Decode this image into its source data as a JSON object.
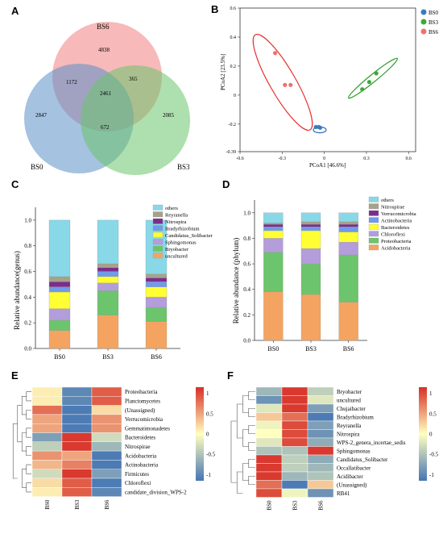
{
  "panel_labels": [
    "A",
    "B",
    "C",
    "D",
    "E",
    "F"
  ],
  "chart_data": [
    {
      "panel": "A",
      "type": "venn",
      "sets": [
        "BS6",
        "BS0",
        "BS3"
      ],
      "colors": {
        "BS6": "#f08080",
        "BS0": "#5b8fc8",
        "BS3": "#6cc46c"
      },
      "regions": {
        "BS6_only": "4838",
        "BS0_only": "2847",
        "BS3_only": "2085",
        "BS6_BS0": "1172",
        "BS6_BS3": "365",
        "BS0_BS3": "672",
        "all": "2461"
      }
    },
    {
      "panel": "B",
      "type": "scatter",
      "xlabel": "PCoA1 [46.6%]",
      "ylabel": "PCoA2 [23.5%]",
      "xticks": [
        "-0.6",
        "-0.3",
        "0",
        "0.3",
        "0.6"
      ],
      "yticks": [
        "-0.39",
        "-0.2",
        "0",
        "0.2",
        "0.4",
        "0.6"
      ],
      "xlim": [
        -0.6,
        0.65
      ],
      "ylim": [
        -0.39,
        0.6
      ],
      "legend_position": "top-right",
      "series": [
        {
          "name": "BS0",
          "color": "#3a7bbf",
          "points": [
            [
              -0.06,
              -0.22
            ],
            [
              -0.04,
              -0.22
            ],
            [
              -0.03,
              -0.225
            ]
          ]
        },
        {
          "name": "BS3",
          "color": "#3aab3a",
          "points": [
            [
              0.27,
              0.04
            ],
            [
              0.32,
              0.09
            ],
            [
              0.37,
              0.15
            ]
          ]
        },
        {
          "name": "BS6",
          "color": "#f07070",
          "points": [
            [
              -0.35,
              0.29
            ],
            [
              -0.28,
              0.07
            ],
            [
              -0.24,
              0.07
            ]
          ]
        }
      ]
    },
    {
      "panel": "C",
      "type": "stacked-bar",
      "ylabel": "Relative abundance(genus)",
      "categories": [
        "BS0",
        "BS3",
        "BS6"
      ],
      "yticks": [
        "0.0",
        "0.2",
        "0.4",
        "0.6",
        "0.8",
        "1.0"
      ],
      "ylim": [
        0,
        1.1
      ],
      "legend": [
        "others",
        "Reyranella",
        "Nitrospira",
        "Bradyrhizobium",
        "Candidatus_Solibacter",
        "Sphingomonas",
        "Bryobacter",
        "uncultured"
      ],
      "series": [
        {
          "name": "uncultured",
          "color": "#f4a460",
          "values": [
            0.14,
            0.26,
            0.21
          ]
        },
        {
          "name": "Bryobacter",
          "color": "#6cc46c",
          "values": [
            0.08,
            0.19,
            0.11
          ]
        },
        {
          "name": "Sphingomonas",
          "color": "#b39ddb",
          "values": [
            0.09,
            0.06,
            0.08
          ]
        },
        {
          "name": "Candidatus_Solibacter",
          "color": "#ffff33",
          "values": [
            0.13,
            0.05,
            0.08
          ]
        },
        {
          "name": "Bradyrhizobium",
          "color": "#6f9be8",
          "values": [
            0.04,
            0.04,
            0.04
          ]
        },
        {
          "name": "Nitrospira",
          "color": "#7b2d8e",
          "values": [
            0.04,
            0.03,
            0.03
          ]
        },
        {
          "name": "Reyranella",
          "color": "#a5a28a",
          "values": [
            0.04,
            0.03,
            0.03
          ]
        },
        {
          "name": "others",
          "color": "#88d8e8",
          "values": [
            0.44,
            0.34,
            0.42
          ]
        }
      ]
    },
    {
      "panel": "D",
      "type": "stacked-bar",
      "ylabel": "Relative abundance (phylum)",
      "categories": [
        "BS0",
        "BS3",
        "BS6"
      ],
      "yticks": [
        "0.0",
        "0.2",
        "0.4",
        "0.6",
        "0.8",
        "1.0"
      ],
      "ylim": [
        0,
        1.1
      ],
      "legend": [
        "others",
        "Nitrospirae",
        "Verrucomicrobia",
        "Actinobacteria",
        "Bacteroidetes",
        "Chloroflexi",
        "Proteobacteria",
        "Acidobacteria"
      ],
      "series": [
        {
          "name": "Acidobacteria",
          "color": "#f4a460",
          "values": [
            0.38,
            0.36,
            0.3
          ]
        },
        {
          "name": "Proteobacteria",
          "color": "#6cc46c",
          "values": [
            0.31,
            0.24,
            0.37
          ]
        },
        {
          "name": "Chloroflexi",
          "color": "#b39ddb",
          "values": [
            0.11,
            0.12,
            0.1
          ]
        },
        {
          "name": "Bacteroidetes",
          "color": "#ffff33",
          "values": [
            0.06,
            0.14,
            0.08
          ]
        },
        {
          "name": "Actinobacteria",
          "color": "#6f9be8",
          "values": [
            0.03,
            0.03,
            0.04
          ]
        },
        {
          "name": "Verrucomicrobia",
          "color": "#7b2d8e",
          "values": [
            0.02,
            0.02,
            0.02
          ]
        },
        {
          "name": "Nitrospirae",
          "color": "#a5a28a",
          "values": [
            0.01,
            0.02,
            0.02
          ]
        },
        {
          "name": "others",
          "color": "#88d8e8",
          "values": [
            0.08,
            0.07,
            0.07
          ]
        }
      ]
    },
    {
      "panel": "E",
      "type": "heatmap",
      "columns": [
        "BS0",
        "BS3",
        "BS6"
      ],
      "rows": [
        "Proteobacteria",
        "Planctomycetes",
        "(Unassigned)",
        "Verrucomicrobia",
        "Gemmatimonadetes",
        "Bacteroidetes",
        "Nitrospirae",
        "Acidobacteria",
        "Actinobacteria",
        "Firmicutes",
        "Chloroflexi",
        "candidate_division_WPS-2"
      ],
      "values": [
        [
          0.1,
          -1.0,
          0.9
        ],
        [
          0.1,
          -1.0,
          0.9
        ],
        [
          0.8,
          -1.1,
          0.2
        ],
        [
          0.5,
          -1.1,
          0.6
        ],
        [
          0.5,
          -1.1,
          0.6
        ],
        [
          -0.8,
          1.1,
          -0.3
        ],
        [
          -0.4,
          1.1,
          -0.6
        ],
        [
          0.6,
          0.5,
          -1.1
        ],
        [
          0.4,
          0.7,
          -1.1
        ],
        [
          -0.3,
          1.1,
          -0.8
        ],
        [
          0.2,
          0.9,
          -1.1
        ],
        [
          0.1,
          0.9,
          -1.0
        ]
      ],
      "scale_ticks": [
        "1",
        "0.5",
        "0",
        "-0.5",
        "-1"
      ],
      "vmin": -1.15,
      "vmax": 1.15
    },
    {
      "panel": "F",
      "type": "heatmap",
      "columns": [
        "BS0",
        "BS3",
        "BS6"
      ],
      "rows": [
        "Bryobacter",
        "uncultured",
        "Chujaibacter",
        "Bradyrhizobium",
        "Reyranella",
        "Nitrospira",
        "WPS-2_genera_incertae_sedis",
        "Sphingomonas",
        "Candidatus_Solibacter",
        "Occallatibacter",
        "Acidibacter",
        "(Unassigned)",
        "RB41"
      ],
      "values": [
        [
          -0.6,
          1.1,
          -0.4
        ],
        [
          -0.9,
          1.1,
          -0.2
        ],
        [
          -0.2,
          1.1,
          -0.8
        ],
        [
          0.3,
          0.8,
          -1.1
        ],
        [
          -0.1,
          1.0,
          -0.8
        ],
        [
          0.0,
          1.0,
          -0.9
        ],
        [
          -0.2,
          1.0,
          -0.7
        ],
        [
          -0.5,
          -0.5,
          1.1
        ],
        [
          1.1,
          -0.4,
          -0.7
        ],
        [
          1.1,
          -0.4,
          -0.6
        ],
        [
          1.1,
          -0.6,
          -0.5
        ],
        [
          0.8,
          -1.1,
          0.3
        ],
        [
          1.0,
          -0.1,
          -0.9
        ]
      ],
      "scale_ticks": [
        "1",
        "0.5",
        "0",
        "-0.5",
        "-1"
      ],
      "vmin": -1.15,
      "vmax": 1.15
    }
  ]
}
